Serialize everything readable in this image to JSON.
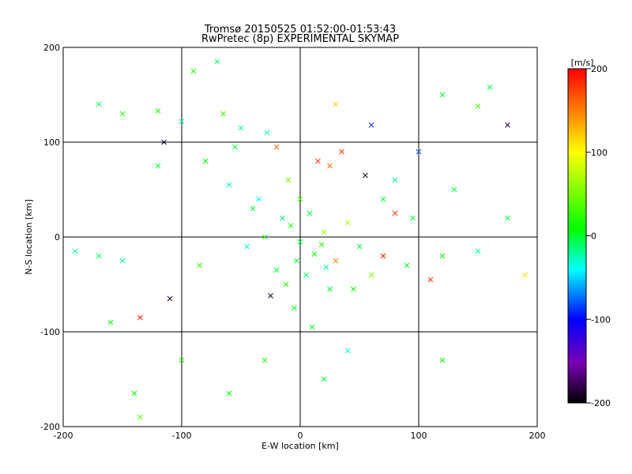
{
  "chart_data": {
    "type": "scatter",
    "title": "Tromsø 20150525 01:52:00-01:53:43",
    "subtitle": "RwPretec (8p) EXPERIMENTAL SKYMAP",
    "xlabel": "E-W location [km]",
    "ylabel": "N-S location [km]",
    "xlim": [
      -200,
      200
    ],
    "ylim": [
      -200,
      200
    ],
    "xticks": [
      "-200",
      "-100",
      "0",
      "100",
      "200"
    ],
    "yticks": [
      "-200",
      "-100",
      "0",
      "100",
      "200"
    ],
    "grid": true,
    "colorbar": {
      "label": "[m/s]",
      "range": [
        -200,
        200
      ],
      "ticks": [
        "200",
        "100",
        "0",
        "-100",
        "-200"
      ],
      "colors": [
        "#000000",
        "#7a00b5",
        "#0000ff",
        "#00ffff",
        "#00ff00",
        "#ffff00",
        "#ff0000"
      ]
    },
    "points": [
      {
        "x": 0,
        "y": -5,
        "v": 0,
        "m": "x"
      },
      {
        "x": 12,
        "y": -18,
        "v": 10,
        "m": "x"
      },
      {
        "x": -8,
        "y": 12,
        "v": 20,
        "m": "x"
      },
      {
        "x": 20,
        "y": 5,
        "v": 60,
        "m": "x"
      },
      {
        "x": -20,
        "y": -35,
        "v": 0,
        "m": "x"
      },
      {
        "x": 5,
        "y": -40,
        "v": -10,
        "m": "x"
      },
      {
        "x": 30,
        "y": -25,
        "v": 150,
        "m": "x"
      },
      {
        "x": -12,
        "y": -50,
        "v": 20,
        "m": "x"
      },
      {
        "x": -35,
        "y": 40,
        "v": -40,
        "m": "x"
      },
      {
        "x": -10,
        "y": 60,
        "v": 50,
        "m": "x"
      },
      {
        "x": 15,
        "y": 80,
        "v": 180,
        "m": "x"
      },
      {
        "x": 35,
        "y": 90,
        "v": 180,
        "m": "x"
      },
      {
        "x": 25,
        "y": 75,
        "v": 160,
        "m": "x"
      },
      {
        "x": -28,
        "y": 110,
        "v": -30,
        "m": "x"
      },
      {
        "x": -50,
        "y": 115,
        "v": -20,
        "m": "x"
      },
      {
        "x": -65,
        "y": 130,
        "v": 30,
        "m": "x"
      },
      {
        "x": -100,
        "y": 122,
        "v": -20,
        "m": "x"
      },
      {
        "x": -115,
        "y": 100,
        "v": -190,
        "m": "x"
      },
      {
        "x": -120,
        "y": 75,
        "v": 0,
        "m": "x"
      },
      {
        "x": -150,
        "y": 130,
        "v": 20,
        "m": "x"
      },
      {
        "x": -170,
        "y": 140,
        "v": -10,
        "m": "x"
      },
      {
        "x": -190,
        "y": -15,
        "v": -20,
        "m": "x"
      },
      {
        "x": -170,
        "y": -20,
        "v": -10,
        "m": "x"
      },
      {
        "x": -150,
        "y": -25,
        "v": -20,
        "m": "x"
      },
      {
        "x": -160,
        "y": -90,
        "v": 10,
        "m": "x"
      },
      {
        "x": -135,
        "y": -85,
        "v": 190,
        "m": "x"
      },
      {
        "x": -110,
        "y": -65,
        "v": -190,
        "m": "x"
      },
      {
        "x": -100,
        "y": -130,
        "v": 20,
        "m": "x"
      },
      {
        "x": -140,
        "y": -165,
        "v": 10,
        "m": "x"
      },
      {
        "x": -135,
        "y": -190,
        "v": 40,
        "m": "x"
      },
      {
        "x": 60,
        "y": -40,
        "v": 50,
        "m": "x"
      },
      {
        "x": 90,
        "y": -30,
        "v": 0,
        "m": "x"
      },
      {
        "x": 120,
        "y": -20,
        "v": 10,
        "m": "x"
      },
      {
        "x": 110,
        "y": -45,
        "v": 180,
        "m": "x"
      },
      {
        "x": 150,
        "y": -15,
        "v": -20,
        "m": "x"
      },
      {
        "x": 175,
        "y": 20,
        "v": 0,
        "m": "x"
      },
      {
        "x": 190,
        "y": -40,
        "v": 110,
        "m": "x"
      },
      {
        "x": 175,
        "y": 118,
        "v": -190,
        "m": "x"
      },
      {
        "x": 150,
        "y": 138,
        "v": 30,
        "m": "x"
      },
      {
        "x": 100,
        "y": 90,
        "v": -80,
        "m": "x"
      },
      {
        "x": 80,
        "y": 60,
        "v": -20,
        "m": "x"
      },
      {
        "x": 70,
        "y": 40,
        "v": 0,
        "m": "x"
      },
      {
        "x": 55,
        "y": 65,
        "v": -190,
        "m": "x"
      },
      {
        "x": 60,
        "y": 118,
        "v": -90,
        "m": "x"
      },
      {
        "x": 120,
        "y": 150,
        "v": 0,
        "m": "x"
      },
      {
        "x": 130,
        "y": 50,
        "v": 0,
        "m": "x"
      },
      {
        "x": -80,
        "y": 80,
        "v": 10,
        "m": "x"
      },
      {
        "x": -60,
        "y": 55,
        "v": -30,
        "m": "x"
      },
      {
        "x": -40,
        "y": 30,
        "v": 0,
        "m": "x"
      },
      {
        "x": -30,
        "y": 0,
        "v": 20,
        "m": "x"
      },
      {
        "x": -45,
        "y": -10,
        "v": -30,
        "m": "x"
      },
      {
        "x": 40,
        "y": 15,
        "v": 70,
        "m": "x"
      },
      {
        "x": 50,
        "y": -10,
        "v": 0,
        "m": "x"
      },
      {
        "x": 25,
        "y": -55,
        "v": 0,
        "m": "x"
      },
      {
        "x": -5,
        "y": -75,
        "v": 10,
        "m": "x"
      },
      {
        "x": 10,
        "y": -95,
        "v": 0,
        "m": "x"
      },
      {
        "x": -30,
        "y": -130,
        "v": 20,
        "m": "x"
      },
      {
        "x": -60,
        "y": -165,
        "v": 10,
        "m": "x"
      },
      {
        "x": 20,
        "y": -150,
        "v": 0,
        "m": "x"
      },
      {
        "x": 40,
        "y": -120,
        "v": -30,
        "m": "x"
      },
      {
        "x": -70,
        "y": 185,
        "v": -10,
        "m": "x"
      },
      {
        "x": -90,
        "y": 175,
        "v": 20,
        "m": "x"
      },
      {
        "x": -55,
        "y": 95,
        "v": 0,
        "m": "x"
      },
      {
        "x": -20,
        "y": 95,
        "v": 160,
        "m": "x"
      },
      {
        "x": 0,
        "y": 40,
        "v": 30,
        "m": "x"
      },
      {
        "x": 8,
        "y": 25,
        "v": 0,
        "m": "x"
      },
      {
        "x": -15,
        "y": 20,
        "v": -10,
        "m": "x"
      },
      {
        "x": 18,
        "y": -8,
        "v": 20,
        "m": "x"
      },
      {
        "x": -3,
        "y": -25,
        "v": 0,
        "m": "x"
      },
      {
        "x": 22,
        "y": -32,
        "v": -20,
        "m": "x"
      },
      {
        "x": 45,
        "y": -55,
        "v": 10,
        "m": "x"
      },
      {
        "x": -25,
        "y": -62,
        "v": -190,
        "m": "x"
      },
      {
        "x": 70,
        "y": -20,
        "v": 190,
        "m": "x"
      },
      {
        "x": -85,
        "y": -30,
        "v": 30,
        "m": "x"
      },
      {
        "x": 80,
        "y": 25,
        "v": 180,
        "m": "x"
      },
      {
        "x": 95,
        "y": 20,
        "v": 0,
        "m": "x"
      },
      {
        "x": 160,
        "y": 158,
        "v": 0,
        "m": "x"
      },
      {
        "x": -120,
        "y": 133,
        "v": 20,
        "m": "x"
      },
      {
        "x": 30,
        "y": 140,
        "v": 120,
        "m": "x"
      },
      {
        "x": 120,
        "y": -130,
        "v": 10,
        "m": "x"
      }
    ]
  }
}
